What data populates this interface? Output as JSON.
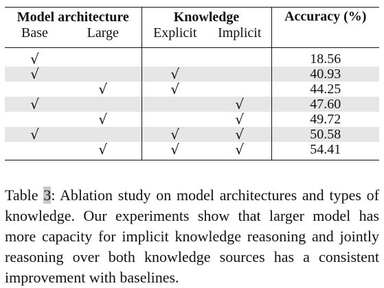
{
  "table": {
    "group_headers": {
      "model_architecture": "Model architecture",
      "knowledge": "Knowledge",
      "accuracy": "Accuracy (%)"
    },
    "sub_headers": {
      "base": "Base",
      "large": "Large",
      "explicit": "Explicit",
      "implicit": "Implicit"
    },
    "check_mark": "√",
    "rows": [
      {
        "base": "√",
        "large": "",
        "explicit": "",
        "implicit": "",
        "accuracy": "18.56"
      },
      {
        "base": "√",
        "large": "",
        "explicit": "√",
        "implicit": "",
        "accuracy": "40.93"
      },
      {
        "base": "",
        "large": "√",
        "explicit": "√",
        "implicit": "",
        "accuracy": "44.25"
      },
      {
        "base": "√",
        "large": "",
        "explicit": "",
        "implicit": "√",
        "accuracy": "47.60"
      },
      {
        "base": "",
        "large": "√",
        "explicit": "",
        "implicit": "√",
        "accuracy": "49.72"
      },
      {
        "base": "√",
        "large": "",
        "explicit": "√",
        "implicit": "√",
        "accuracy": "50.58"
      },
      {
        "base": "",
        "large": "√",
        "explicit": "√",
        "implicit": "√",
        "accuracy": "54.41"
      }
    ]
  },
  "caption": {
    "label_prefix": "Table ",
    "label_number": "3",
    "label_suffix": ":",
    "text": " Ablation study on model architectures and types of knowledge. Our experiments show that larger model has more capacity for implicit knowledge reasoning and jointly reasoning over both knowledge sources has a consistent improvement with baselines."
  },
  "colors": {
    "shaded_row": "#e6e6e6",
    "highlight": "#c8c8c8"
  }
}
